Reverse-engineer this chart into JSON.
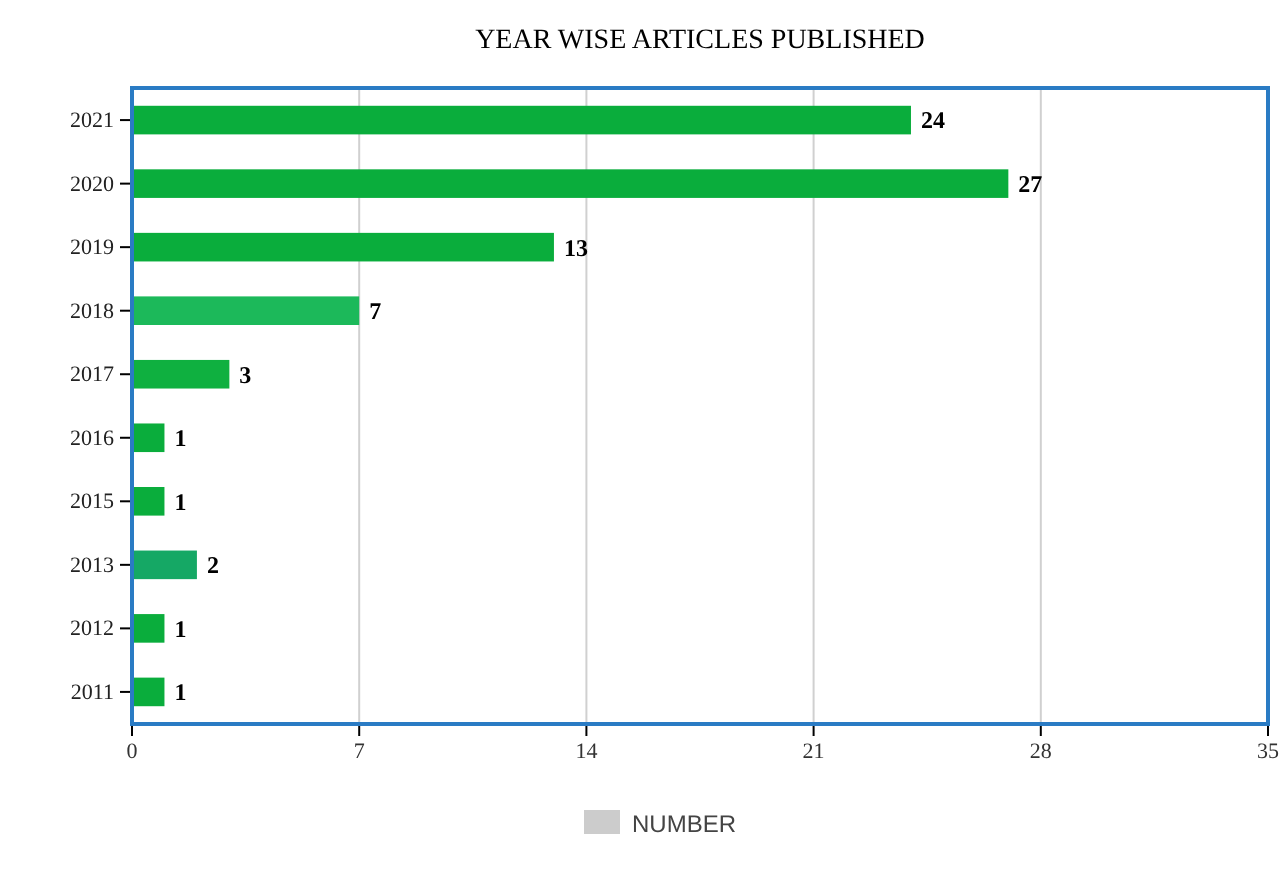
{
  "chart_data": {
    "type": "bar",
    "orientation": "horizontal",
    "title": "YEAR WISE ARTICLES PUBLISHED",
    "categories": [
      "2021",
      "2020",
      "2019",
      "2018",
      "2017",
      "2016",
      "2015",
      "2013",
      "2012",
      "2011"
    ],
    "series": [
      {
        "name": "NUMBER",
        "color": "#cccccc",
        "colors": [
          "#0aad3c",
          "#0aad3c",
          "#0aad3c",
          "#1cb95a",
          "#0fb040",
          "#0aad3c",
          "#0aad3c",
          "#15a865",
          "#0aad3c",
          "#0aad3c"
        ],
        "values": [
          24,
          27,
          13,
          7,
          3,
          1,
          1,
          2,
          1,
          1
        ]
      }
    ],
    "xlim": [
      0,
      35
    ],
    "xticks": [
      0,
      7,
      14,
      21,
      28,
      35
    ],
    "grid": "x",
    "data_labels": true,
    "legend": "bottom"
  }
}
